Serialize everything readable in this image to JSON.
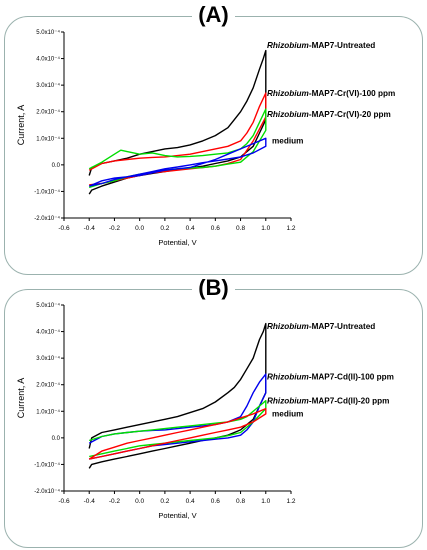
{
  "panels": [
    {
      "label": "(A)"
    },
    {
      "label": "(B)"
    }
  ],
  "chart_data": [
    {
      "type": "line",
      "panel": "(A)",
      "xlabel": "Potential, V",
      "ylabel": "Current, A",
      "xlim": [
        -0.6,
        1.2
      ],
      "ylim": [
        -0.0002,
        0.0005
      ],
      "x_ticks": [
        "-0.6",
        "-0.4",
        "-0.2",
        "0.0",
        "0.2",
        "0.4",
        "0.6",
        "0.8",
        "1.0",
        "1.2"
      ],
      "y_ticks": [
        "-2.0x10⁻⁴",
        "-1.0x10⁻⁴",
        "0.0",
        "1.0x10⁻⁴",
        "2.0x10⁻⁴",
        "3.0x10⁻⁴",
        "4.0x10⁻⁴",
        "5.0x10⁻⁴"
      ],
      "y_tick_values": [
        -0.0002,
        -0.0001,
        0,
        0.0001,
        0.0002,
        0.0003,
        0.0004,
        0.0005
      ],
      "x_tick_values": [
        -0.6,
        -0.4,
        -0.2,
        0.0,
        0.2,
        0.4,
        0.6,
        0.8,
        1.0,
        1.2
      ],
      "series": [
        {
          "name_italic": "Rhizobium",
          "name_rest": "-MAP7-Untreated",
          "color": "#000000",
          "label_y": 0.00044,
          "x": [
            -0.4,
            -0.38,
            -0.3,
            -0.2,
            -0.1,
            0.0,
            0.1,
            0.2,
            0.3,
            0.4,
            0.5,
            0.6,
            0.7,
            0.8,
            0.9,
            0.95,
            1.0,
            1.0,
            0.98,
            0.95,
            0.9,
            0.85,
            0.8,
            0.75,
            0.7,
            0.6,
            0.5,
            0.4,
            0.3,
            0.2,
            0.1,
            0.0,
            -0.1,
            -0.2,
            -0.3,
            -0.38,
            -0.4
          ],
          "y": [
            -0.00011,
            -9.5e-05,
            -8e-05,
            -6.5e-05,
            -5e-05,
            -4e-05,
            -3.2e-05,
            -2.5e-05,
            -1.8e-05,
            -1.2e-05,
            -5e-06,
            5e-06,
            1.5e-05,
            3e-05,
            7e-05,
            0.00012,
            0.00017,
            0.00043,
            0.0004,
            0.00036,
            0.00029,
            0.00024,
            0.0002,
            0.00017,
            0.00014,
            0.00011,
            9e-05,
            7.5e-05,
            6.5e-05,
            6e-05,
            5e-05,
            4e-05,
            2.5e-05,
            1.5e-05,
            5e-06,
            -1e-05,
            -4e-05
          ]
        },
        {
          "name_italic": "Rhizobium",
          "name_rest": "-MAP7-Cr(VI)-100 ppm",
          "color": "#ff0000",
          "label_y": 0.00026,
          "x": [
            -0.4,
            -0.3,
            -0.2,
            -0.1,
            0.0,
            0.1,
            0.2,
            0.3,
            0.4,
            0.5,
            0.6,
            0.7,
            0.8,
            0.9,
            1.0,
            1.0,
            0.95,
            0.9,
            0.85,
            0.8,
            0.7,
            0.6,
            0.5,
            0.4,
            0.3,
            0.2,
            0.1,
            0.0,
            -0.1,
            -0.2,
            -0.3,
            -0.4
          ],
          "y": [
            -7.5e-05,
            -7e-05,
            -6e-05,
            -5e-05,
            -4e-05,
            -3e-05,
            -2.5e-05,
            -2e-05,
            -1.5e-05,
            -1e-05,
            -5e-06,
            5e-06,
            2e-05,
            9e-05,
            0.00018,
            0.00027,
            0.00022,
            0.00016,
            0.00012,
            9e-05,
            7e-05,
            6e-05,
            5e-05,
            4e-05,
            3.5e-05,
            3e-05,
            2.8e-05,
            2.5e-05,
            2e-05,
            1.5e-05,
            5e-06,
            -2e-05
          ]
        },
        {
          "name_italic": "Rhizobium",
          "name_rest": "-MAP7-Cr(VI)-20 ppm",
          "color": "#00dd00",
          "label_y": 0.00018,
          "x": [
            -0.4,
            -0.3,
            -0.2,
            -0.1,
            0.0,
            0.1,
            0.2,
            0.3,
            0.4,
            0.5,
            0.6,
            0.7,
            0.8,
            0.9,
            1.0,
            1.0,
            0.95,
            0.9,
            0.85,
            0.8,
            0.7,
            0.6,
            0.5,
            0.4,
            0.3,
            0.2,
            0.1,
            0.0,
            -0.1,
            -0.15,
            -0.2,
            -0.3,
            -0.4
          ],
          "y": [
            -8.5e-05,
            -7e-05,
            -6e-05,
            -4.5e-05,
            -3.5e-05,
            -2.8e-05,
            -2e-05,
            -1.5e-05,
            -1.2e-05,
            -1e-05,
            -5e-06,
            3e-06,
            1e-05,
            5e-05,
            0.00013,
            0.00021,
            0.00016,
            0.00011,
            8e-05,
            6e-05,
            4.5e-05,
            4e-05,
            3.5e-05,
            3.2e-05,
            3e-05,
            3.5e-05,
            4.5e-05,
            4e-05,
            5e-05,
            5.5e-05,
            4e-05,
            1e-05,
            -1.5e-05
          ]
        },
        {
          "name_italic": "",
          "name_rest": "medium",
          "color": "#0000ee",
          "label_y": 8e-05,
          "x": [
            -0.4,
            -0.3,
            -0.2,
            -0.1,
            0.0,
            0.1,
            0.2,
            0.3,
            0.4,
            0.5,
            0.6,
            0.7,
            0.8,
            0.9,
            1.0,
            1.0,
            0.9,
            0.8,
            0.7,
            0.6,
            0.5,
            0.4,
            0.3,
            0.2,
            0.1,
            0.0,
            -0.1,
            -0.2,
            -0.3,
            -0.4
          ],
          "y": [
            -8e-05,
            -7e-05,
            -5.5e-05,
            -4.5e-05,
            -3.5e-05,
            -2.5e-05,
            -1.5e-05,
            -8e-06,
            0.0,
            8e-06,
            1.5e-05,
            2.2e-05,
            3e-05,
            4.5e-05,
            7e-05,
            0.0001,
            8e-05,
            6e-05,
            4e-05,
            2e-05,
            5e-06,
            -1e-05,
            -1.5e-05,
            -2e-05,
            -3e-05,
            -4e-05,
            -4.5e-05,
            -5e-05,
            -6e-05,
            -8e-05
          ]
        }
      ]
    },
    {
      "type": "line",
      "panel": "(B)",
      "xlabel": "Potential, V",
      "ylabel": "Current, A",
      "xlim": [
        -0.6,
        1.2
      ],
      "ylim": [
        -0.0002,
        0.0005
      ],
      "x_ticks": [
        "-0.6",
        "-0.4",
        "-0.2",
        "0.0",
        "0.2",
        "0.4",
        "0.6",
        "0.8",
        "1.0",
        "1.2"
      ],
      "y_ticks": [
        "-2.0x10⁻⁴",
        "-1.0x10⁻⁴",
        "0.0",
        "1.0x10⁻⁴",
        "2.0x10⁻⁴",
        "3.0x10⁻⁴",
        "4.0x10⁻⁴",
        "5.0x10⁻⁴"
      ],
      "y_tick_values": [
        -0.0002,
        -0.0001,
        0,
        0.0001,
        0.0002,
        0.0003,
        0.0004,
        0.0005
      ],
      "x_tick_values": [
        -0.6,
        -0.4,
        -0.2,
        0.0,
        0.2,
        0.4,
        0.6,
        0.8,
        1.0,
        1.2
      ],
      "series": [
        {
          "name_italic": "Rhizobium",
          "name_rest": "-MAP7-Untreated",
          "color": "#000000",
          "label_y": 0.00041,
          "x": [
            -0.4,
            -0.38,
            -0.3,
            -0.2,
            -0.1,
            0.0,
            0.1,
            0.2,
            0.3,
            0.4,
            0.5,
            0.6,
            0.7,
            0.8,
            0.9,
            0.95,
            1.0,
            1.0,
            0.98,
            0.95,
            0.9,
            0.85,
            0.8,
            0.75,
            0.7,
            0.6,
            0.5,
            0.4,
            0.3,
            0.2,
            0.1,
            0.0,
            -0.1,
            -0.2,
            -0.3,
            -0.38,
            -0.4
          ],
          "y": [
            -0.000115,
            -0.0001,
            -9e-05,
            -8e-05,
            -7e-05,
            -6e-05,
            -5e-05,
            -4e-05,
            -3e-05,
            -2e-05,
            -1e-05,
            0.0,
            1e-05,
            3e-05,
            7e-05,
            0.00012,
            0.00017,
            0.00043,
            0.0004,
            0.00037,
            0.0003,
            0.00026,
            0.00022,
            0.00019,
            0.00017,
            0.000135,
            0.00011,
            9.5e-05,
            8e-05,
            7e-05,
            6e-05,
            5e-05,
            4e-05,
            3e-05,
            2e-05,
            0.0,
            -4e-05
          ]
        },
        {
          "name_italic": "Rhizobium",
          "name_rest": "-MAP7-Cd(II)-100 ppm",
          "color": "#0000ee",
          "label_y": 0.00022,
          "x": [
            -0.4,
            -0.3,
            -0.2,
            -0.1,
            0.0,
            0.1,
            0.2,
            0.3,
            0.4,
            0.5,
            0.6,
            0.7,
            0.8,
            0.85,
            0.9,
            0.95,
            1.0,
            1.0,
            0.95,
            0.9,
            0.85,
            0.8,
            0.7,
            0.6,
            0.5,
            0.4,
            0.3,
            0.2,
            0.1,
            0.0,
            -0.1,
            -0.2,
            -0.3,
            -0.4
          ],
          "y": [
            -8e-05,
            -7e-05,
            -6e-05,
            -5e-05,
            -4e-05,
            -3e-05,
            -2.5e-05,
            -2e-05,
            -1.5e-05,
            -1e-05,
            -5e-06,
            0.0,
            1e-05,
            3e-05,
            6e-05,
            0.00012,
            0.00017,
            0.00024,
            0.00021,
            0.00017,
            0.00012,
            8e-05,
            6e-05,
            5e-05,
            4.5e-05,
            4e-05,
            3.5e-05,
            3e-05,
            2.8e-05,
            2.5e-05,
            2e-05,
            1.5e-05,
            5e-06,
            -2e-05
          ]
        },
        {
          "name_italic": "Rhizobium",
          "name_rest": "-MAP7-Cd(II)-20 ppm",
          "color": "#00dd00",
          "label_y": 0.00013,
          "x": [
            -0.4,
            -0.3,
            -0.2,
            -0.1,
            0.0,
            0.1,
            0.2,
            0.3,
            0.4,
            0.5,
            0.6,
            0.7,
            0.8,
            0.9,
            1.0,
            1.0,
            0.95,
            0.9,
            0.85,
            0.8,
            0.7,
            0.6,
            0.5,
            0.4,
            0.3,
            0.2,
            0.1,
            0.0,
            -0.1,
            -0.2,
            -0.3,
            -0.4
          ],
          "y": [
            -7e-05,
            -6e-05,
            -5e-05,
            -4e-05,
            -3e-05,
            -2.5e-05,
            -2e-05,
            -1.5e-05,
            -1e-05,
            -5e-06,
            0.0,
            8e-06,
            2e-05,
            6e-05,
            0.00011,
            0.00014,
            0.00012,
            0.0001,
            8e-05,
            7e-05,
            6e-05,
            5.5e-05,
            5e-05,
            4.5e-05,
            4e-05,
            3.5e-05,
            3e-05,
            2.5e-05,
            2e-05,
            1.5e-05,
            5e-06,
            -1e-05
          ]
        },
        {
          "name_italic": "",
          "name_rest": "medium",
          "color": "#ff0000",
          "label_y": 8e-05,
          "x": [
            -0.4,
            -0.3,
            -0.2,
            -0.1,
            0.0,
            0.1,
            0.2,
            0.3,
            0.4,
            0.5,
            0.6,
            0.7,
            0.8,
            0.9,
            1.0,
            1.0,
            0.9,
            0.8,
            0.7,
            0.6,
            0.5,
            0.4,
            0.3,
            0.2,
            0.1,
            0.0,
            -0.1,
            -0.2,
            -0.3,
            -0.4
          ],
          "y": [
            -8e-05,
            -7e-05,
            -6e-05,
            -5e-05,
            -4e-05,
            -3e-05,
            -2e-05,
            -1e-05,
            0.0,
            1e-05,
            2e-05,
            3e-05,
            4e-05,
            6e-05,
            9e-05,
            0.00011,
            9e-05,
            7.5e-05,
            6e-05,
            5e-05,
            4e-05,
            3e-05,
            2e-05,
            1e-05,
            0.0,
            -1e-05,
            -2e-05,
            -3.5e-05,
            -5e-05,
            -8e-05
          ]
        }
      ]
    }
  ]
}
